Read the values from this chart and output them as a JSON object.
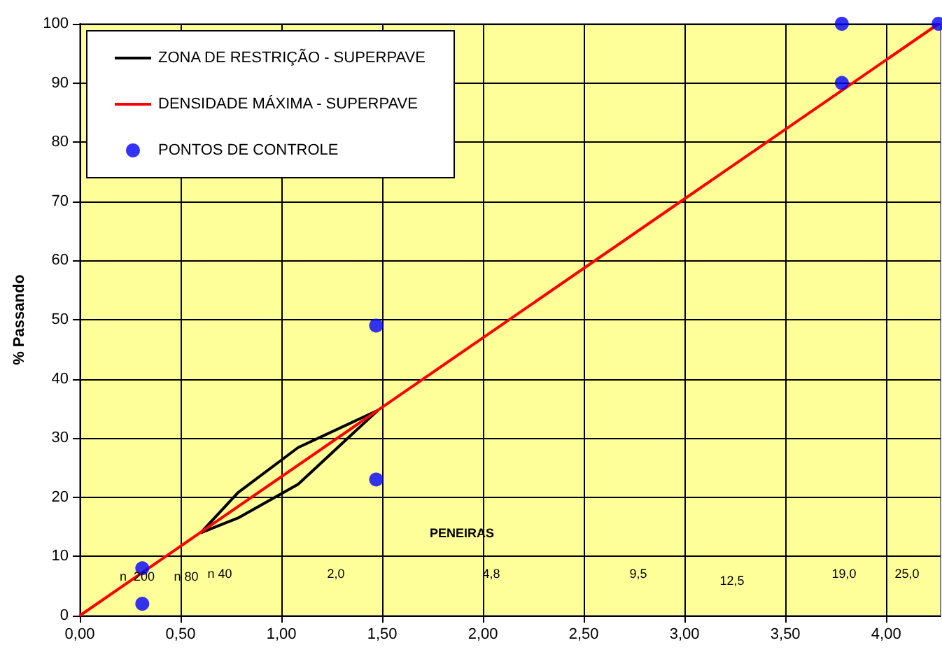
{
  "chart_data": {
    "type": "line",
    "ylabel": "% Passando",
    "xlim": [
      0,
      4.27
    ],
    "xticks": [
      {
        "value": 0,
        "label": "0,00"
      },
      {
        "value": 0.5,
        "label": "0,50"
      },
      {
        "value": 1,
        "label": "1,00"
      },
      {
        "value": 1.5,
        "label": "1,50"
      },
      {
        "value": 2,
        "label": "2,00"
      },
      {
        "value": 2.5,
        "label": "2,50"
      },
      {
        "value": 3,
        "label": "3,00"
      },
      {
        "value": 3.5,
        "label": "3,50"
      },
      {
        "value": 4,
        "label": "4,00"
      }
    ],
    "ylim": [
      0,
      100
    ],
    "yticks": [
      0,
      10,
      20,
      30,
      40,
      50,
      60,
      70,
      80,
      90,
      100
    ],
    "grid": true,
    "legend": "top left",
    "series": [
      {
        "name": "ZONA DE RESTRIÇÃO - SUPERPAVE",
        "color": "#000000",
        "marker": "none",
        "x": [
          0.6,
          0.785,
          1.083,
          1.479
        ],
        "values": [
          14,
          20.8,
          28.4,
          34.7
        ]
      },
      {
        "color": "#000000",
        "marker": "none",
        "x": [
          0.6,
          0.785,
          1.083,
          1.479
        ],
        "values": [
          14,
          16.5,
          22.2,
          34.7
        ]
      },
      {
        "name": "DENSIDADE MÁXIMA - SUPERPAVE",
        "color": "#ff0000",
        "marker": "none",
        "x": [
          0,
          4.26
        ],
        "values": [
          0,
          100
        ]
      },
      {
        "name": "PONTOS DE CONTROLE",
        "type": "scatter",
        "color": "#0000ff",
        "marker": "circle",
        "x": [
          0.31,
          0.31,
          1.47,
          1.47,
          3.78,
          3.78,
          4.26
        ],
        "values": [
          8,
          2,
          49,
          23,
          90,
          100,
          100
        ]
      }
    ],
    "annotations": [
      "PENEIRAS",
      "n  200",
      "n 80",
      "n 40",
      "2,0",
      "4,8",
      "9,5",
      "12,5",
      "19,0",
      "25,0"
    ]
  }
}
